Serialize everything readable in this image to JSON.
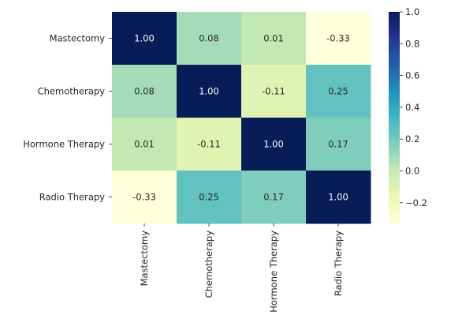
{
  "chart_data": {
    "type": "heatmap",
    "title": "",
    "xlabel": "",
    "ylabel": "",
    "row_labels": [
      "Mastectomy",
      "Chemotherapy",
      "Hormone Therapy",
      "Radio Therapy"
    ],
    "column_labels": [
      "Mastectomy",
      "Chemotherapy",
      "Hormone Therapy",
      "Radio Therapy"
    ],
    "values": [
      [
        1.0,
        0.08,
        0.01,
        -0.33
      ],
      [
        0.08,
        1.0,
        -0.11,
        0.25
      ],
      [
        0.01,
        -0.11,
        1.0,
        0.17
      ],
      [
        -0.33,
        0.25,
        0.17,
        1.0
      ]
    ],
    "annotation_labels": [
      [
        "1.00",
        "0.08",
        "0.01",
        "-0.33"
      ],
      [
        "0.08",
        "1.00",
        "-0.11",
        "0.25"
      ],
      [
        "0.01",
        "-0.11",
        "1.00",
        "0.17"
      ],
      [
        "-0.33",
        "0.25",
        "0.17",
        "1.00"
      ]
    ],
    "colormap": "YlGnBu",
    "colormap_stops": [
      "#ffffd9",
      "#edf8b1",
      "#c7e9b4",
      "#7fcdbb",
      "#41b6c4",
      "#1d91c0",
      "#225ea8",
      "#253494",
      "#081d58"
    ],
    "vmin": -0.33,
    "vmax": 1.0,
    "colorbar": {
      "ticks": [
        1.0,
        0.8,
        0.6,
        0.4,
        0.2,
        0.0,
        -0.2
      ],
      "tick_labels": [
        "1.0",
        "0.8",
        "0.6",
        "0.4",
        "0.2",
        "0.0",
        "−0.2"
      ],
      "placement": "right"
    },
    "annotation_color_light": "#ffffff",
    "annotation_color_dark": "#262626"
  }
}
